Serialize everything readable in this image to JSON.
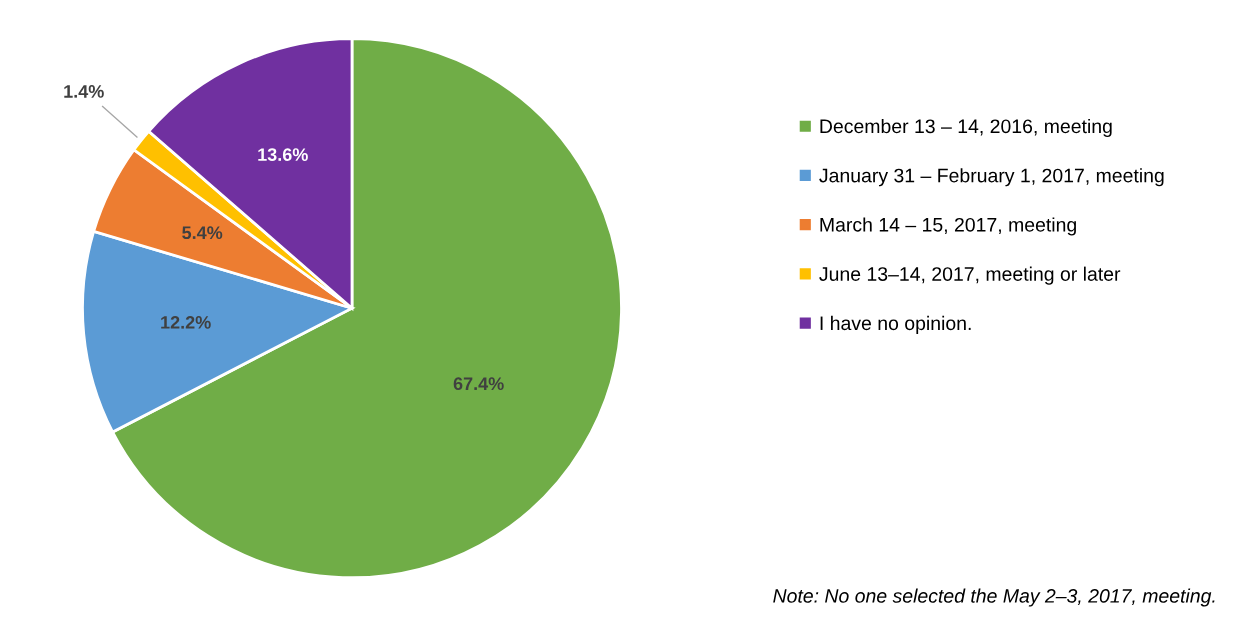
{
  "chart_data": {
    "type": "pie",
    "categories": [
      "December 13 – 14, 2016, meeting",
      "January 31 – February 1, 2017, meeting",
      "March 14 – 15, 2017, meeting",
      "June 13–14, 2017, meeting or later",
      "I have no opinion."
    ],
    "values": [
      67.4,
      12.2,
      5.4,
      1.4,
      13.6
    ],
    "colors": [
      "#70ad47",
      "#5b9bd5",
      "#ed7d31",
      "#ffc000",
      "#7030a0"
    ],
    "value_labels": [
      "67.4%",
      "12.2%",
      "5.4%",
      "1.4%",
      "13.6%"
    ],
    "legend": "right",
    "annotations": [
      "Note: No one selected the May 2–3, 2017, meeting."
    ]
  }
}
